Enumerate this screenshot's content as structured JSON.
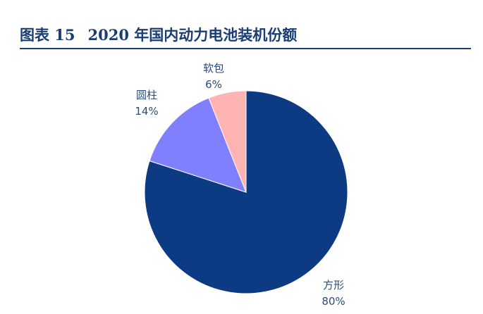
{
  "figure": {
    "number_label": "图表 15",
    "title": "2020 年国内动力电池装机份额"
  },
  "chart_data": {
    "type": "pie",
    "title": "2020 年国内动力电池装机份额",
    "categories": [
      "方形",
      "圆柱",
      "软包"
    ],
    "values": [
      80,
      14,
      6
    ],
    "value_labels": [
      "80%",
      "14%",
      "6%"
    ],
    "unit": "%",
    "colors": [
      "#0c3b84",
      "#8080ff",
      "#ffb3b3"
    ],
    "start_angle_deg": 0,
    "direction": "clockwise",
    "legend": "none"
  }
}
